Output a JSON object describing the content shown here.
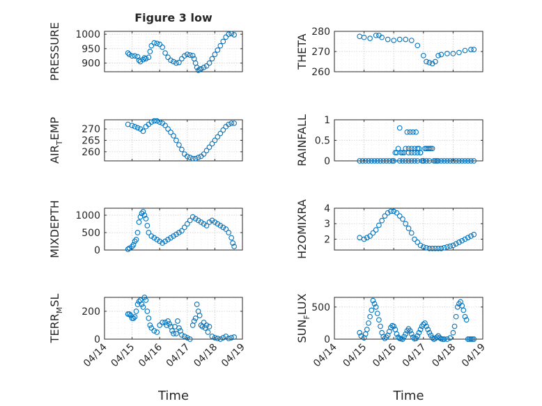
{
  "figure": {
    "title": "Figure 3 low",
    "xlabel": "Time"
  },
  "chart_data": [
    {
      "type": "scatter",
      "ylabel": "PRESSURE",
      "ylim": [
        870,
        1010
      ],
      "yticks": [
        900,
        950,
        1000
      ],
      "xticks": [
        "04/14",
        "04/15",
        "04/16",
        "04/17",
        "04/18",
        "04/19"
      ],
      "show_xticklabels": false,
      "grid": true,
      "x": [
        14.85,
        14.9,
        15.0,
        15.1,
        15.2,
        15.25,
        15.3,
        15.4,
        15.45,
        15.5,
        15.6,
        15.65,
        15.7,
        15.8,
        15.9,
        16.0,
        16.1,
        16.2,
        16.3,
        16.4,
        16.5,
        16.6,
        16.7,
        16.8,
        16.9,
        17.0,
        17.1,
        17.2,
        17.25,
        17.3,
        17.35,
        17.4,
        17.45,
        17.5,
        17.6,
        17.7,
        17.8,
        17.9,
        18.0,
        18.1,
        18.2,
        18.3,
        18.4,
        18.5,
        18.6,
        18.7
      ],
      "y": [
        935,
        930,
        925,
        925,
        922,
        910,
        905,
        912,
        918,
        915,
        920,
        940,
        960,
        970,
        968,
        965,
        955,
        935,
        920,
        910,
        905,
        900,
        902,
        915,
        925,
        930,
        928,
        926,
        915,
        900,
        885,
        875,
        878,
        880,
        885,
        890,
        900,
        915,
        930,
        945,
        960,
        975,
        990,
        1000,
        1002,
        998
      ]
    },
    {
      "type": "scatter",
      "ylabel": "THETA",
      "ylim": [
        260,
        280
      ],
      "yticks": [
        260,
        270,
        280
      ],
      "xticks": [
        "04/14",
        "04/15",
        "04/16",
        "04/17",
        "04/18",
        "04/19"
      ],
      "show_xticklabels": false,
      "grid": true,
      "x": [
        14.85,
        15.0,
        15.2,
        15.4,
        15.5,
        15.6,
        15.8,
        16.0,
        16.2,
        16.4,
        16.6,
        16.8,
        17.0,
        17.1,
        17.2,
        17.3,
        17.4,
        17.5,
        17.6,
        17.8,
        18.0,
        18.2,
        18.4,
        18.6,
        18.7
      ],
      "y": [
        277.5,
        277,
        276.5,
        278,
        278,
        277,
        276,
        275.5,
        276,
        276,
        275.5,
        273,
        268,
        265,
        264.5,
        264,
        265,
        268,
        268.5,
        269,
        269,
        269.5,
        270.5,
        271,
        271
      ]
    },
    {
      "type": "scatter",
      "ylabel": "AIR_TEMP",
      "ylim": [
        256,
        274
      ],
      "yticks": [
        260,
        265,
        270
      ],
      "xticks": [
        "04/14",
        "04/15",
        "04/16",
        "04/17",
        "04/18",
        "04/19"
      ],
      "show_xticklabels": false,
      "grid": true,
      "x": [
        14.85,
        15.0,
        15.1,
        15.2,
        15.3,
        15.4,
        15.5,
        15.6,
        15.7,
        15.8,
        15.9,
        16.0,
        16.1,
        16.2,
        16.3,
        16.4,
        16.5,
        16.6,
        16.7,
        16.8,
        16.9,
        17.0,
        17.1,
        17.2,
        17.3,
        17.4,
        17.5,
        17.6,
        17.7,
        17.8,
        17.9,
        18.0,
        18.1,
        18.2,
        18.3,
        18.4,
        18.5,
        18.6,
        18.7
      ],
      "y": [
        272,
        271.5,
        271,
        270.5,
        270,
        269,
        271,
        272,
        273,
        273.5,
        273.5,
        273,
        272.5,
        271.5,
        270,
        268.5,
        267,
        265,
        263,
        261,
        259,
        258,
        257.5,
        257,
        257,
        257.5,
        258,
        259,
        260.5,
        262,
        263.5,
        265,
        266.5,
        268,
        269.5,
        271,
        272,
        272.5,
        272.5
      ]
    },
    {
      "type": "scatter",
      "ylabel": "RAINFALL",
      "ylim": [
        0,
        1
      ],
      "yticks": [
        0,
        0.5,
        1
      ],
      "xticks": [
        "04/14",
        "04/15",
        "04/16",
        "04/17",
        "04/18",
        "04/19"
      ],
      "show_xticklabels": false,
      "grid": true,
      "x": [
        14.85,
        14.95,
        15.05,
        15.15,
        15.25,
        15.35,
        15.45,
        15.55,
        15.65,
        15.75,
        15.85,
        15.95,
        16.0,
        16.05,
        16.1,
        16.15,
        16.2,
        16.25,
        16.3,
        16.35,
        16.4,
        16.45,
        16.5,
        16.55,
        16.6,
        16.65,
        16.7,
        16.75,
        16.8,
        16.85,
        16.9,
        16.95,
        17.0,
        17.05,
        17.1,
        17.15,
        17.2,
        17.25,
        17.3,
        17.35,
        17.4,
        17.45,
        17.5,
        17.6,
        17.7,
        17.8,
        17.9,
        18.0,
        18.1,
        18.2,
        18.3,
        18.4,
        18.5,
        18.6,
        18.7,
        16.2,
        16.3,
        16.4,
        16.5,
        16.6,
        16.7,
        16.8,
        17.0,
        17.1,
        17.2,
        16.5,
        16.6,
        16.7,
        16.8,
        16.9
      ],
      "y": [
        0,
        0,
        0,
        0,
        0,
        0,
        0,
        0,
        0,
        0,
        0,
        0,
        0,
        0.2,
        0.2,
        0.3,
        0.8,
        0.2,
        0.2,
        0.2,
        0.3,
        0.7,
        0.3,
        0.7,
        0.3,
        0.7,
        0.3,
        0.7,
        0.3,
        0.3,
        0.2,
        0,
        0,
        0.3,
        0.3,
        0.3,
        0.3,
        0.3,
        0.3,
        0,
        0,
        0,
        0,
        0,
        0,
        0,
        0,
        0,
        0,
        0,
        0,
        0,
        0,
        0,
        0,
        0,
        0,
        0,
        0,
        0,
        0,
        0,
        0,
        0,
        0,
        0.2,
        0.2,
        0.2,
        0.2,
        0.2
      ]
    },
    {
      "type": "scatter",
      "ylabel": "MIXDEPTH",
      "ylim": [
        0,
        1200
      ],
      "yticks": [
        0,
        500,
        1000
      ],
      "xticks": [
        "04/14",
        "04/15",
        "04/16",
        "04/17",
        "04/18",
        "04/19"
      ],
      "show_xticklabels": false,
      "grid": true,
      "x": [
        14.85,
        14.9,
        15.0,
        15.05,
        15.1,
        15.15,
        15.2,
        15.25,
        15.3,
        15.35,
        15.4,
        15.45,
        15.5,
        15.55,
        15.6,
        15.7,
        15.8,
        15.9,
        16.0,
        16.1,
        16.2,
        16.3,
        16.4,
        16.5,
        16.6,
        16.7,
        16.8,
        16.9,
        17.0,
        17.1,
        17.2,
        17.3,
        17.4,
        17.5,
        17.6,
        17.7,
        17.8,
        17.9,
        18.0,
        18.1,
        18.2,
        18.3,
        18.4,
        18.5,
        18.6,
        18.65,
        18.7
      ],
      "y": [
        20,
        50,
        100,
        150,
        250,
        300,
        500,
        800,
        950,
        1050,
        1100,
        1000,
        900,
        700,
        500,
        400,
        350,
        300,
        250,
        200,
        250,
        300,
        350,
        400,
        450,
        500,
        550,
        650,
        750,
        850,
        950,
        900,
        850,
        800,
        750,
        700,
        800,
        850,
        800,
        750,
        700,
        650,
        600,
        500,
        350,
        200,
        100
      ]
    },
    {
      "type": "scatter",
      "ylabel": "H2OMIXRA",
      "ylim": [
        1.3,
        4
      ],
      "yticks": [
        2,
        3,
        4
      ],
      "xticks": [
        "04/14",
        "04/15",
        "04/16",
        "04/17",
        "04/18",
        "04/19"
      ],
      "show_xticklabels": false,
      "grid": true,
      "x": [
        14.85,
        15.0,
        15.1,
        15.2,
        15.3,
        15.4,
        15.5,
        15.6,
        15.7,
        15.8,
        15.9,
        16.0,
        16.1,
        16.2,
        16.3,
        16.4,
        16.5,
        16.6,
        16.7,
        16.8,
        16.9,
        17.0,
        17.1,
        17.2,
        17.3,
        17.4,
        17.5,
        17.6,
        17.7,
        17.8,
        17.9,
        18.0,
        18.1,
        18.2,
        18.3,
        18.4,
        18.5,
        18.6,
        18.7
      ],
      "y": [
        2.1,
        2.0,
        2.1,
        2.2,
        2.4,
        2.6,
        2.9,
        3.2,
        3.5,
        3.7,
        3.8,
        3.8,
        3.7,
        3.5,
        3.3,
        3.0,
        2.7,
        2.4,
        2.0,
        1.8,
        1.6,
        1.5,
        1.45,
        1.4,
        1.4,
        1.4,
        1.4,
        1.4,
        1.45,
        1.5,
        1.55,
        1.6,
        1.7,
        1.8,
        1.9,
        2.0,
        2.1,
        2.2,
        2.3
      ]
    },
    {
      "type": "scatter",
      "ylabel": "TERR_MSL",
      "ylim": [
        0,
        300
      ],
      "yticks": [
        0,
        200
      ],
      "xticks": [
        "04/14",
        "04/15",
        "04/16",
        "04/17",
        "04/18",
        "04/19"
      ],
      "show_xticklabels": true,
      "grid": true,
      "x": [
        14.85,
        14.9,
        14.95,
        15.0,
        15.05,
        15.1,
        15.15,
        15.2,
        15.25,
        15.3,
        15.35,
        15.4,
        15.45,
        15.5,
        15.55,
        15.6,
        15.65,
        15.7,
        15.8,
        15.9,
        16.0,
        16.1,
        16.2,
        16.25,
        16.3,
        16.35,
        16.4,
        16.45,
        16.5,
        16.55,
        16.6,
        16.65,
        16.7,
        16.75,
        16.8,
        16.9,
        17.0,
        17.1,
        17.2,
        17.25,
        17.3,
        17.35,
        17.4,
        17.45,
        17.5,
        17.55,
        17.6,
        17.65,
        17.7,
        17.75,
        17.8,
        17.9,
        18.0,
        18.1,
        18.2,
        18.3,
        18.4,
        18.5,
        18.6,
        18.7
      ],
      "y": [
        180,
        180,
        170,
        150,
        150,
        160,
        200,
        250,
        270,
        280,
        250,
        230,
        300,
        280,
        200,
        150,
        100,
        80,
        60,
        50,
        100,
        120,
        120,
        100,
        130,
        110,
        90,
        60,
        40,
        90,
        40,
        130,
        80,
        60,
        30,
        20,
        10,
        0,
        100,
        130,
        150,
        250,
        200,
        170,
        100,
        90,
        120,
        80,
        100,
        50,
        90,
        20,
        10,
        5,
        0,
        10,
        20,
        5,
        10,
        15
      ]
    },
    {
      "type": "scatter",
      "ylabel": "SUN_FLUX",
      "ylim": [
        0,
        650
      ],
      "yticks": [
        0,
        500
      ],
      "xticks": [
        "04/14",
        "04/15",
        "04/16",
        "04/17",
        "04/18",
        "04/19"
      ],
      "show_xticklabels": true,
      "grid": true,
      "x": [
        14.85,
        14.9,
        15.0,
        15.05,
        15.1,
        15.15,
        15.2,
        15.25,
        15.3,
        15.35,
        15.4,
        15.45,
        15.5,
        15.55,
        15.6,
        15.65,
        15.7,
        15.75,
        15.8,
        15.85,
        15.9,
        15.95,
        16.0,
        16.05,
        16.1,
        16.15,
        16.2,
        16.25,
        16.3,
        16.35,
        16.4,
        16.45,
        16.5,
        16.55,
        16.6,
        16.65,
        16.7,
        16.75,
        16.8,
        16.85,
        16.9,
        16.95,
        17.0,
        17.05,
        17.1,
        17.15,
        17.2,
        17.25,
        17.3,
        17.35,
        17.4,
        17.45,
        17.5,
        17.55,
        17.6,
        17.65,
        17.7,
        17.8,
        17.9,
        18.0,
        18.05,
        18.1,
        18.15,
        18.2,
        18.25,
        18.3,
        18.35,
        18.4,
        18.45,
        18.5,
        18.55,
        18.6,
        18.65,
        18.7
      ],
      "y": [
        100,
        50,
        20,
        80,
        150,
        250,
        350,
        450,
        600,
        550,
        500,
        400,
        300,
        200,
        100,
        40,
        10,
        30,
        60,
        120,
        180,
        210,
        200,
        150,
        80,
        30,
        10,
        5,
        0,
        40,
        80,
        130,
        160,
        130,
        80,
        30,
        5,
        10,
        50,
        100,
        150,
        200,
        230,
        250,
        200,
        150,
        100,
        60,
        20,
        0,
        10,
        30,
        50,
        20,
        5,
        0,
        0,
        0,
        20,
        100,
        200,
        350,
        500,
        550,
        580,
        520,
        450,
        350,
        300,
        0,
        0,
        0,
        0,
        0
      ]
    }
  ]
}
